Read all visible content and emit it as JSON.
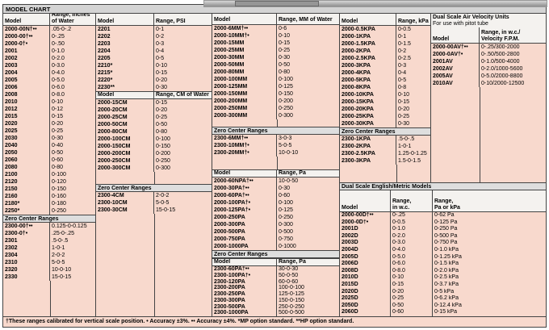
{
  "page": {
    "title": "MODEL CHART",
    "footnote": "†These ranges calibrated for vertical scale position. • Accuracy ±3%. •• Accuracy ±4%. *MP option standard. **HP option standard."
  },
  "colors": {
    "table_background": "#f8d9cd",
    "header_background": "#f4f2ef",
    "section_bar": "#dedede",
    "title_bar": "#d4d4d4",
    "border": "#444444"
  },
  "inches": {
    "model_header": "Model",
    "range_header": "Range, Inches\nof Water",
    "rows": [
      [
        "2000-00N†••",
        ".05-0-.2"
      ],
      [
        "2000-00†••",
        "0-.25"
      ],
      [
        "2000-0†•",
        "0-.50"
      ],
      [
        "2001",
        "0-1.0"
      ],
      [
        "2002",
        "0-2.0"
      ],
      [
        "2003",
        "0-3.0"
      ],
      [
        "2004",
        "0-4.0"
      ],
      [
        "2005",
        "0-5.0"
      ],
      [
        "2006",
        "0-6.0"
      ],
      [
        "2008",
        "0-8.0"
      ],
      [
        "2010",
        "0-10"
      ],
      [
        "2012",
        "0-12"
      ],
      [
        "2015",
        "0-15"
      ],
      [
        "2020",
        "0-20"
      ],
      [
        "2025",
        "0-25"
      ],
      [
        "2030",
        "0-30"
      ],
      [
        "2040",
        "0-40"
      ],
      [
        "2050",
        "0-50"
      ],
      [
        "2060",
        "0-60"
      ],
      [
        "2080",
        "0-80"
      ],
      [
        "2100",
        "0-100"
      ],
      [
        "2120",
        "0-120"
      ],
      [
        "2150",
        "0-150"
      ],
      [
        "2160",
        "0-160"
      ],
      [
        "2180*",
        "0-180"
      ],
      [
        "2250*",
        "0-250"
      ]
    ],
    "zero_label": "Zero Center Ranges",
    "zero_rows": [
      [
        "2300-00†••",
        "0.125-0-0.125"
      ],
      [
        "2300-0†•",
        ".25-0-.25"
      ],
      [
        "2301",
        ".5-0-.5"
      ],
      [
        "2302",
        "1-0-1"
      ],
      [
        "2304",
        "2-0-2"
      ],
      [
        "2310",
        "5-0-5"
      ],
      [
        "2320",
        "10-0-10"
      ],
      [
        "2330",
        "15-0-15"
      ]
    ]
  },
  "psi": {
    "model_header": "Model",
    "range_header": "Range, PSI",
    "rows": [
      [
        "2201",
        "0-1"
      ],
      [
        "2202",
        "0-2"
      ],
      [
        "2203",
        "0-3"
      ],
      [
        "2204",
        "0-4"
      ],
      [
        "2205",
        "0-5"
      ],
      [
        "2210*",
        "0-10"
      ],
      [
        "2215*",
        "0-15"
      ],
      [
        "2220*",
        "0-20"
      ],
      [
        "2230**",
        "0-30"
      ]
    ]
  },
  "cm": {
    "model_header": "Model",
    "range_header": "Range, CM of Water",
    "rows": [
      [
        "2000-15CM",
        "0-15"
      ],
      [
        "2000-20CM",
        "0-20"
      ],
      [
        "2000-25CM",
        "0-25"
      ],
      [
        "2000-50CM",
        "0-50"
      ],
      [
        "2000-80CM",
        "0-80"
      ],
      [
        "2000-100CM",
        "0-100"
      ],
      [
        "2000-150CM",
        "0-150"
      ],
      [
        "2000-200CM",
        "0-200"
      ],
      [
        "2000-250CM",
        "0-250"
      ],
      [
        "2000-300CM",
        "0-300"
      ]
    ],
    "zero_label": "Zero Center Ranges",
    "zero_rows": [
      [
        "2300-4CM",
        "2-0-2"
      ],
      [
        "2300-10CM",
        "5-0-5"
      ],
      [
        "2300-30CM",
        "15-0-15"
      ]
    ]
  },
  "mm": {
    "model_header": "Model",
    "range_header": "Range, MM of Water",
    "rows": [
      [
        "2000-6MM†••",
        "0-6"
      ],
      [
        "2000-10MM†•",
        "0-10"
      ],
      [
        "2000-15MM",
        "0-15"
      ],
      [
        "2000-25MM",
        "0-25"
      ],
      [
        "2000-30MM",
        "0-30"
      ],
      [
        "2000-50MM",
        "0-50"
      ],
      [
        "2000-80MM",
        "0-80"
      ],
      [
        "2000-100MM",
        "0-100"
      ],
      [
        "2000-125MM",
        "0-125"
      ],
      [
        "2000-150MM",
        "0-150"
      ],
      [
        "2000-200MM",
        "0-200"
      ],
      [
        "2000-250MM",
        "0-250"
      ],
      [
        "2000-300MM",
        "0-300"
      ]
    ],
    "zero_label": "Zero Center Ranges",
    "zero_rows": [
      [
        "2300-6MM†••",
        "3-0-3"
      ],
      [
        "2300-10MM†•",
        "5-0-5"
      ],
      [
        "2300-20MM†•",
        "10-0-10"
      ]
    ]
  },
  "pa": {
    "model_header": "Model",
    "range_header": "Range, Pa",
    "rows": [
      [
        "2000-60NPA†••",
        "10-0-50"
      ],
      [
        "2000-30PA†••",
        "0-30"
      ],
      [
        "2000-60PA†••",
        "0-60"
      ],
      [
        "2000-100PA†•",
        "0-100"
      ],
      [
        "2000-125PA†•",
        "0-125"
      ],
      [
        "2000-250PA",
        "0-250"
      ],
      [
        "2000-300PA",
        "0-300"
      ],
      [
        "2000-500PA",
        "0-500"
      ],
      [
        "2000-750PA",
        "0-750"
      ],
      [
        "2000-1000PA",
        "0-1000"
      ]
    ],
    "zero_label": "Zero Center Ranges",
    "zero_model_header": "Model",
    "zero_range_header": "Range, Pa",
    "zero_rows": [
      [
        "2300-60PA†••",
        "30-0-30"
      ],
      [
        "2300-100PA†•",
        "50-0-50"
      ],
      [
        "2300-120PA",
        "60-0-60"
      ],
      [
        "2300-200PA",
        "100-0-100"
      ],
      [
        "2300-250PA",
        "125-0-125"
      ],
      [
        "2300-300PA",
        "150-0-150"
      ],
      [
        "2300-500PA",
        "250-0-250"
      ],
      [
        "2300-1000PA",
        "500-0-500"
      ]
    ]
  },
  "kpa": {
    "model_header": "Model",
    "range_header": "Range, kPa",
    "rows": [
      [
        "2000-0.5KPA",
        "0-0.5"
      ],
      [
        "2000-1KPA",
        "0-1"
      ],
      [
        "2000-1.5KPA",
        "0-1.5"
      ],
      [
        "2000-2KPA",
        "0-2"
      ],
      [
        "2000-2.5KPA",
        "0-2.5"
      ],
      [
        "2000-3KPA",
        "0-3"
      ],
      [
        "2000-4KPA",
        "0-4"
      ],
      [
        "2000-5KPA",
        "0-5"
      ],
      [
        "2000-8KPA",
        "0-8"
      ],
      [
        "2000-10KPA",
        "0-10"
      ],
      [
        "2000-15KPA",
        "0-15"
      ],
      [
        "2000-20KPA",
        "0-20"
      ],
      [
        "2000-25KPA",
        "0-25"
      ],
      [
        "2000-30KPA",
        "0-30"
      ]
    ],
    "zero_label": "Zero Center Ranges",
    "zero_rows": [
      [
        "2300-1KPA",
        ".5-0-.5"
      ],
      [
        "2300-2KPA",
        "1-0-1"
      ],
      [
        "2300-2.5KPA",
        "1.25-0-1.25"
      ],
      [
        "2300-3KPA",
        "1.5-0-1.5"
      ]
    ]
  },
  "air_velocity": {
    "title": "Dual Scale Air Velocity Units",
    "subtitle": "For use with pitot tube",
    "model_header": "Model",
    "range_header": "Range, in w.c./\nVelocity F.P.M.",
    "rows": [
      [
        "2000-00AV†••",
        "0-.25/300-2000"
      ],
      [
        "2000-0AV†•",
        "0-.50/500-2800"
      ],
      [
        "2001AV",
        "0-1.0/500-4000"
      ],
      [
        "2002AV",
        "0-2.0/1000-5600"
      ],
      [
        "2005AV",
        "0-5.0/2000-8800"
      ],
      [
        "2010AV",
        "0-10/2000-12500"
      ]
    ]
  },
  "english_metric": {
    "title": "Dual Scale English/Metric Models",
    "model_header": "Model",
    "wc_header": "Range,\nin w.c.",
    "pa_header": "Range,\nPa or kPa",
    "rows": [
      [
        "2000-00D†••",
        "0-.25",
        "0-62 Pa"
      ],
      [
        "2000-0D†•",
        "0-0.5",
        "0-125 Pa"
      ],
      [
        "2001D",
        "0-1.0",
        "0-250 Pa"
      ],
      [
        "2002D",
        "0-2.0",
        "0-500 Pa"
      ],
      [
        "2003D",
        "0-3.0",
        "0-750 Pa"
      ],
      [
        "2004D",
        "0-4.0",
        "0-1.0 kPa"
      ],
      [
        "2005D",
        "0-5.0",
        "0-1.25 kPa"
      ],
      [
        "2006D",
        "0-6.0",
        "0-1.5 kPa"
      ],
      [
        "2008D",
        "0-8.0",
        "0-2.0 kPa"
      ],
      [
        "2010D",
        "0-10",
        "0-2.5 kPa"
      ],
      [
        "2015D",
        "0-15",
        "0-3.7 kPa"
      ],
      [
        "2020D",
        "0-20",
        "0-5 kPa"
      ],
      [
        "2025D",
        "0-25",
        "0-6.2 kPa"
      ],
      [
        "2050D",
        "0-50",
        "0-12.4 kPa"
      ],
      [
        "2060D",
        "0-60",
        "0-15 kPa"
      ]
    ]
  }
}
